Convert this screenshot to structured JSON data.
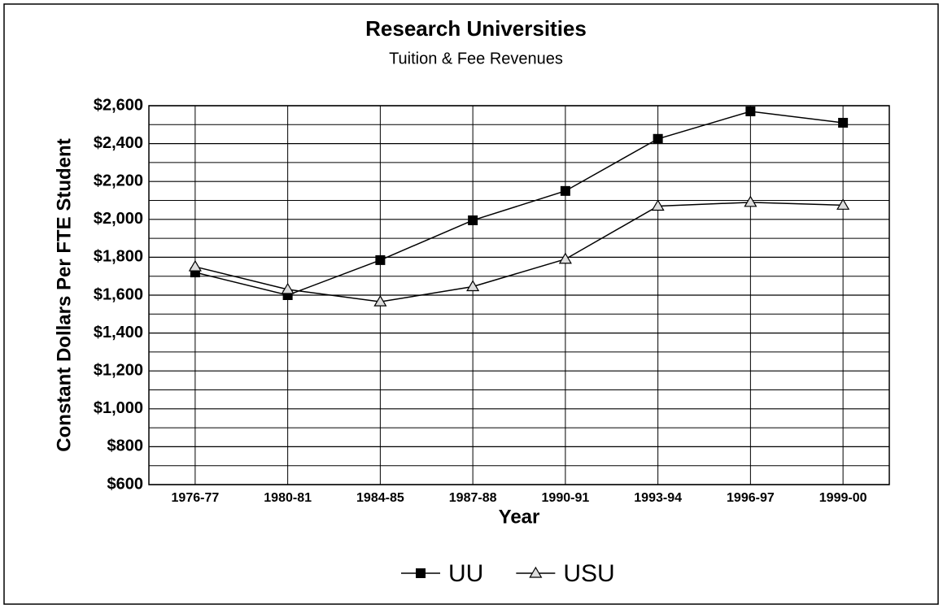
{
  "chart_data": {
    "type": "line",
    "title": "Research Universities",
    "subtitle": "Tuition & Fee Revenues",
    "x_label": "Year",
    "y_label": "Constant Dollars Per FTE Student",
    "categories": [
      "1976-77",
      "1980-81",
      "1984-85",
      "1987-88",
      "1990-91",
      "1993-94",
      "1996-97",
      "1999-00"
    ],
    "series": [
      {
        "name": "UU",
        "color": "#000000",
        "marker": "square",
        "values": [
          1720,
          1600,
          1785,
          1995,
          2150,
          2425,
          2570,
          2510
        ]
      },
      {
        "name": "USU",
        "color": "#000000",
        "marker": "triangle",
        "values": [
          1750,
          1630,
          1565,
          1645,
          1790,
          2070,
          2090,
          2075
        ]
      }
    ],
    "ylim": [
      600,
      2600
    ],
    "yticks": [
      {
        "value": 600,
        "label": "$600"
      },
      {
        "value": 800,
        "label": "$800"
      },
      {
        "value": 1000,
        "label": "$1,000"
      },
      {
        "value": 1200,
        "label": "$1,200"
      },
      {
        "value": 1400,
        "label": "$1,400"
      },
      {
        "value": 1600,
        "label": "$1,600"
      },
      {
        "value": 1800,
        "label": "$1,800"
      },
      {
        "value": 2000,
        "label": "$2,000"
      },
      {
        "value": 2200,
        "label": "$2,200"
      },
      {
        "value": 2400,
        "label": "$2,400"
      },
      {
        "value": 2600,
        "label": "$2,600"
      }
    ],
    "yticks_minor": [
      700,
      900,
      1100,
      1300,
      1500,
      1700,
      1900,
      2100,
      2300,
      2500
    ],
    "grid": true,
    "legend": "bottom"
  }
}
